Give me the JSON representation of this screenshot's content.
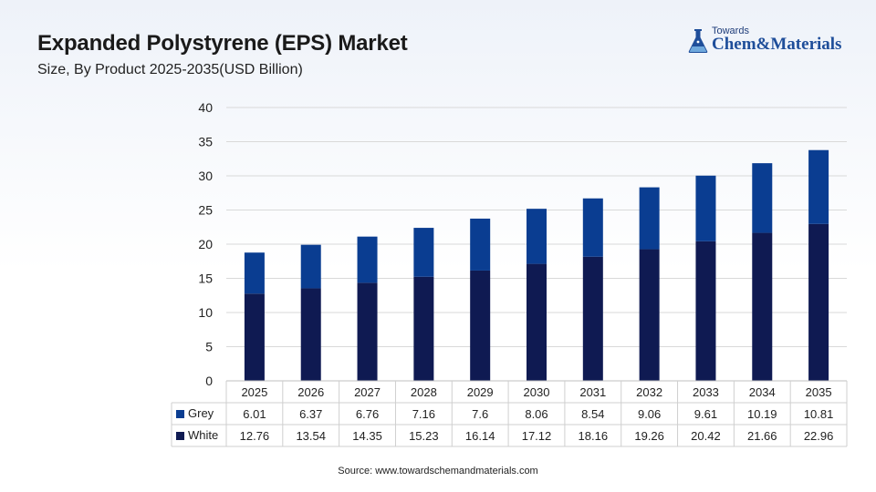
{
  "header": {
    "title": "Expanded Polystyrene (EPS) Market",
    "subtitle": "Size, By Product 2025-2035(USD Billion)"
  },
  "logo": {
    "small": "Towards",
    "brand": "Chem&Materials",
    "icon": "flask-icon"
  },
  "footer": {
    "source": "Source: www.towardschemandmaterials.com"
  },
  "colors": {
    "Grey": "#0a3d91",
    "White": "#0f1a52"
  },
  "chart_data": {
    "type": "bar",
    "stacked": true,
    "categories": [
      "2025",
      "2026",
      "2027",
      "2028",
      "2029",
      "2030",
      "2031",
      "2032",
      "2033",
      "2034",
      "2035"
    ],
    "series": [
      {
        "name": "White",
        "values": [
          12.76,
          13.54,
          14.35,
          15.23,
          16.14,
          17.12,
          18.16,
          19.26,
          20.42,
          21.66,
          22.96
        ]
      },
      {
        "name": "Grey",
        "values": [
          6.01,
          6.37,
          6.76,
          7.16,
          7.6,
          8.06,
          8.54,
          9.06,
          9.61,
          10.19,
          10.81
        ]
      }
    ],
    "table_rows": [
      {
        "name": "Grey",
        "values": [
          "6.01",
          "6.37",
          "6.76",
          "7.16",
          "7.6",
          "8.06",
          "8.54",
          "9.06",
          "9.61",
          "10.19",
          "10.81"
        ]
      },
      {
        "name": "White",
        "values": [
          "12.76",
          "13.54",
          "14.35",
          "15.23",
          "16.14",
          "17.12",
          "18.16",
          "19.26",
          "20.42",
          "21.66",
          "22.96"
        ]
      }
    ],
    "ylim": [
      0,
      40
    ],
    "yticks": [
      0,
      5,
      10,
      15,
      20,
      25,
      30,
      35,
      40
    ],
    "grid": true,
    "legend": "data-table"
  }
}
